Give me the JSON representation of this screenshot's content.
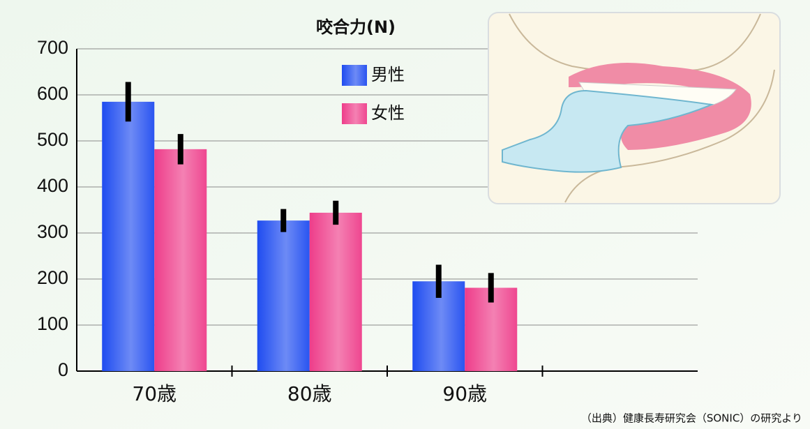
{
  "chart_data": {
    "type": "bar",
    "title": "咬合力(N)",
    "categories": [
      "70歳",
      "80歳",
      "90歳",
      null
    ],
    "series": [
      {
        "name": "男性",
        "color": "#1f4cf0",
        "values": [
          585,
          327,
          195,
          null
        ],
        "errors": [
          43,
          25,
          36,
          null
        ]
      },
      {
        "name": "女性",
        "color": "#ee3d8a",
        "values": [
          482,
          344,
          181,
          null
        ],
        "errors": [
          33,
          26,
          32,
          null
        ]
      }
    ],
    "ylim": [
      0,
      700
    ],
    "yticks": [
      0,
      100,
      200,
      300,
      400,
      500,
      600,
      700
    ],
    "grid": true,
    "legend": "top",
    "source": "（出典）健康長寿研究会（SONIC）の研究より"
  }
}
